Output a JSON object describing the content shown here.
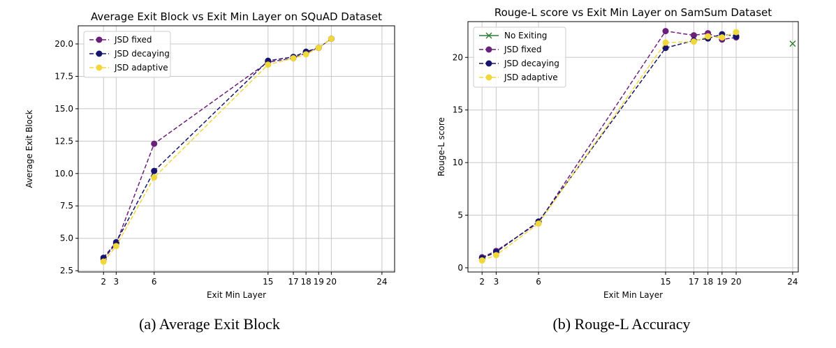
{
  "colors": {
    "jsd_fixed": "#6a1f7a",
    "jsd_decaying": "#17146b",
    "jsd_adaptive": "#f0d83a",
    "no_exiting": "#2e7d32",
    "grid": "#c8c8c8"
  },
  "captions": [
    "(a) Average Exit Block",
    "(b) Rouge-L Accuracy"
  ],
  "chart_data": [
    {
      "type": "line",
      "title": "Average Exit Block vs Exit Min Layer on SQuAD Dataset",
      "xlabel": "Exit Min Layer",
      "ylabel": "Average Exit Block",
      "xlim": [
        0,
        25
      ],
      "ylim": [
        2.4,
        21.4
      ],
      "xticks": [
        2,
        3,
        6,
        15,
        17,
        18,
        19,
        20,
        24
      ],
      "yticks": [
        2.5,
        5.0,
        7.5,
        10.0,
        12.5,
        15.0,
        17.5,
        20.0
      ],
      "ytick_labels": [
        "2.5",
        "5.0",
        "7.5",
        "10.0",
        "12.5",
        "15.0",
        "17.5",
        "20.0"
      ],
      "grid": true,
      "legend_position": "top-left",
      "x": [
        2,
        3,
        6,
        15,
        17,
        18,
        19,
        20
      ],
      "series": [
        {
          "name": "JSD fixed",
          "color_key": "jsd_fixed",
          "style": "dashed-circle",
          "values": [
            3.4,
            4.6,
            12.3,
            18.6,
            18.9,
            19.3,
            19.7,
            20.4
          ]
        },
        {
          "name": "JSD decaying",
          "color_key": "jsd_decaying",
          "style": "dashed-circle",
          "values": [
            3.5,
            4.7,
            10.2,
            18.7,
            19.0,
            19.4,
            19.7,
            20.4
          ]
        },
        {
          "name": "JSD adaptive",
          "color_key": "jsd_adaptive",
          "style": "dashed-circle",
          "values": [
            3.2,
            4.4,
            9.7,
            18.4,
            18.9,
            19.2,
            19.7,
            20.4
          ]
        }
      ]
    },
    {
      "type": "line",
      "title": "Rouge-L score vs Exit Min Layer on SamSum Dataset",
      "xlabel": "Exit Min Layer",
      "ylabel": "Rouge-L score",
      "xlim": [
        1.0,
        24.4
      ],
      "ylim": [
        -0.4,
        23.4
      ],
      "xticks": [
        2,
        3,
        6,
        15,
        17,
        18,
        19,
        20,
        24
      ],
      "yticks": [
        0,
        5,
        10,
        15,
        20
      ],
      "ytick_labels": [
        "0",
        "5",
        "10",
        "15",
        "20"
      ],
      "grid": true,
      "legend_position": "top-left",
      "x": [
        2,
        3,
        6,
        15,
        17,
        18,
        19,
        20
      ],
      "series": [
        {
          "name": "No Exiting",
          "color_key": "no_exiting",
          "style": "cross",
          "points": [
            [
              24,
              21.3
            ]
          ]
        },
        {
          "name": "JSD fixed",
          "color_key": "jsd_fixed",
          "style": "dashed-circle",
          "values": [
            1.0,
            1.6,
            4.3,
            22.5,
            22.1,
            22.3,
            21.7,
            21.9
          ]
        },
        {
          "name": "JSD decaying",
          "color_key": "jsd_decaying",
          "style": "dashed-circle",
          "values": [
            0.9,
            1.5,
            4.4,
            20.9,
            21.6,
            21.8,
            22.2,
            22.0
          ]
        },
        {
          "name": "JSD adaptive",
          "color_key": "jsd_adaptive",
          "style": "dashed-circle",
          "values": [
            0.7,
            1.2,
            4.2,
            21.4,
            21.5,
            22.0,
            21.9,
            22.4
          ]
        }
      ]
    }
  ]
}
